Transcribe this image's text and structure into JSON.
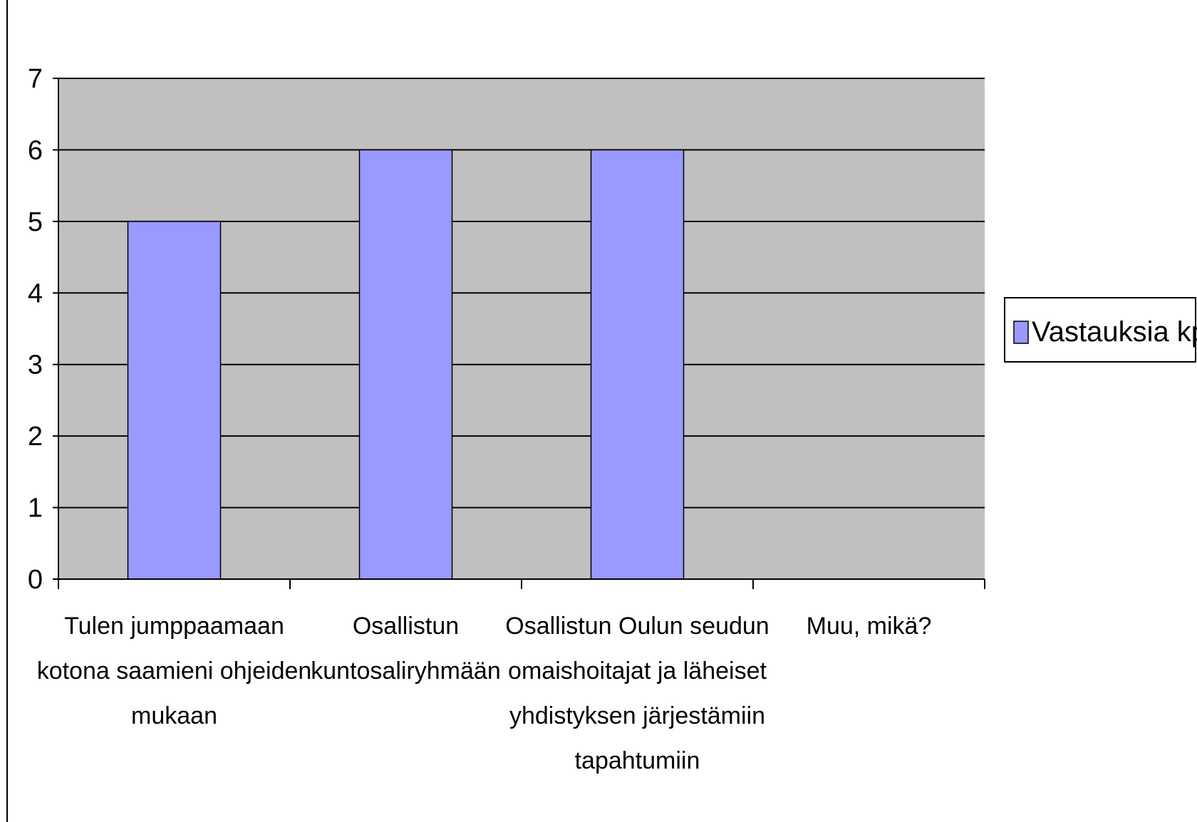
{
  "chart_data": {
    "type": "bar",
    "categories": [
      [
        "Tulen jumppaamaan",
        "kotona saamieni ohjeiden",
        "mukaan"
      ],
      [
        "Osallistun",
        "kuntosaliryhmään"
      ],
      [
        "Osallistun Oulun seudun",
        "omaishoitajat ja läheiset",
        "yhdistyksen järjestämiin",
        "tapahtumiin"
      ],
      [
        "Muu, mikä?"
      ]
    ],
    "series": [
      {
        "name": "Vastauksia kpl",
        "values": [
          5,
          6,
          6,
          0
        ]
      }
    ],
    "ylim": [
      0,
      7
    ],
    "yticks": [
      0,
      1,
      2,
      3,
      4,
      5,
      6,
      7
    ],
    "grid": true,
    "legend": "right",
    "colors": {
      "bar": "#9999FF",
      "plot_bg": "#C0C0C0",
      "gridline": "#000000",
      "axis": "#000000"
    }
  }
}
